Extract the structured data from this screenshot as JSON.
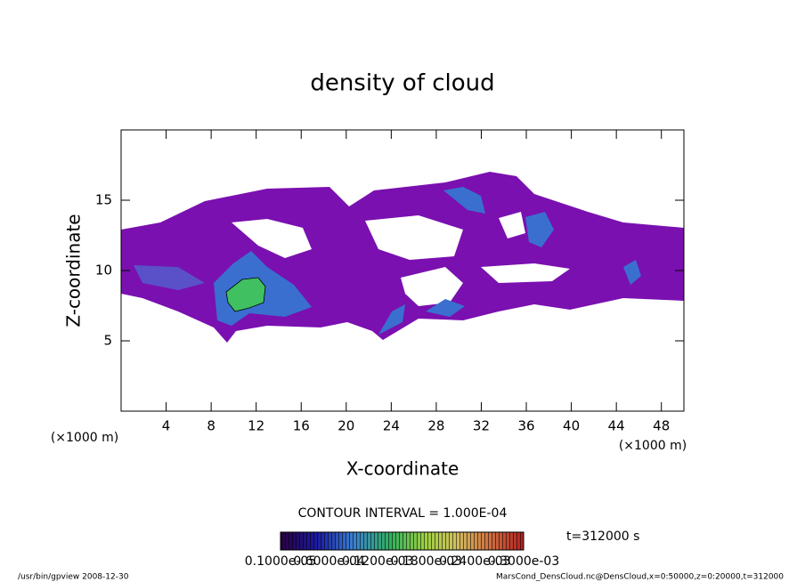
{
  "chart_data": {
    "type": "contour",
    "title": "density of cloud",
    "x_label": "X-coordinate",
    "y_label": "Z-coordinate",
    "x_unit": "(×1000 m)",
    "y_unit": "(×1000 m)",
    "xlim": [
      0,
      50
    ],
    "ylim": [
      0,
      20
    ],
    "xticks": [
      4,
      8,
      12,
      16,
      20,
      24,
      28,
      32,
      36,
      40,
      44,
      48
    ],
    "yticks": [
      5,
      10,
      15
    ],
    "contour_interval": "CONTOUR INTERVAL = 1.000E-04",
    "time": "t=312000 s",
    "colorbar_labels": [
      "0.1000e-05",
      "0.6000e-04",
      "0.1200e-03",
      "0.1800e-03",
      "0.2400e-03",
      "0.3000e-03"
    ],
    "footer_left": "/usr/bin/gpview   2008-12-30",
    "footer_right": "MarsCond_DensCloud.nc@DensCloud,x=0:50000,z=0:20000,t=312000"
  }
}
